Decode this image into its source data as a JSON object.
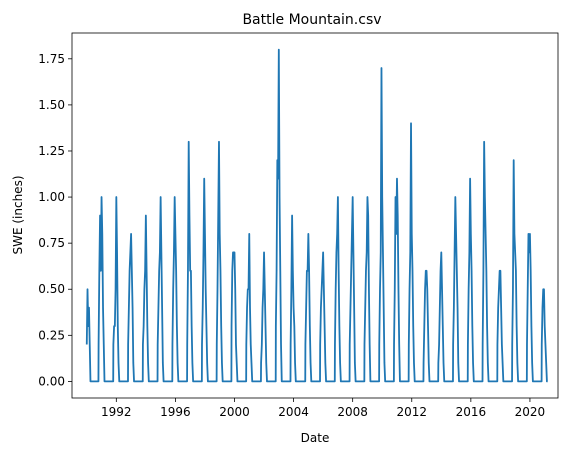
{
  "chart_data": {
    "type": "line",
    "title": "Battle Mountain.csv",
    "xlabel": "Date",
    "ylabel": "SWE (inches)",
    "xlim": [
      1989.0,
      2021.9
    ],
    "ylim": [
      -0.09,
      1.89
    ],
    "xticks": [
      1992,
      1996,
      2000,
      2004,
      2008,
      2012,
      2016,
      2020
    ],
    "yticks": [
      0.0,
      0.25,
      0.5,
      0.75,
      1.0,
      1.25,
      1.5,
      1.75
    ],
    "ytick_labels": [
      "0.00",
      "0.25",
      "0.50",
      "0.75",
      "1.00",
      "1.25",
      "1.50",
      "1.75"
    ],
    "grid": false,
    "series": [
      {
        "color": "#1f77b4",
        "x": [
          1990.0,
          1990.05,
          1990.1,
          1990.15,
          1990.2,
          1990.25,
          1990.3,
          1990.4,
          1990.8,
          1990.85,
          1990.9,
          1990.95,
          1991.0,
          1991.05,
          1991.1,
          1991.15,
          1991.2,
          1991.25,
          1991.3,
          1991.4,
          1991.8,
          1991.85,
          1991.9,
          1991.95,
          1992.0,
          1992.05,
          1992.1,
          1992.15,
          1992.2,
          1992.25,
          1992.3,
          1992.4,
          1992.8,
          1992.85,
          1992.9,
          1992.95,
          1993.0,
          1993.05,
          1993.1,
          1993.15,
          1993.2,
          1993.25,
          1993.3,
          1993.4,
          1993.8,
          1993.85,
          1993.9,
          1993.95,
          1994.0,
          1994.05,
          1994.1,
          1994.15,
          1994.2,
          1994.25,
          1994.3,
          1994.4,
          1994.8,
          1994.85,
          1994.9,
          1994.95,
          1995.0,
          1995.05,
          1995.1,
          1995.15,
          1995.2,
          1995.25,
          1995.3,
          1995.4,
          1995.8,
          1995.85,
          1995.9,
          1995.95,
          1996.0,
          1996.05,
          1996.1,
          1996.15,
          1996.2,
          1996.25,
          1996.3,
          1996.4,
          1996.8,
          1996.85,
          1996.9,
          1996.95,
          1997.0,
          1997.05,
          1997.1,
          1997.15,
          1997.2,
          1997.25,
          1997.3,
          1997.4,
          1997.8,
          1997.85,
          1997.9,
          1997.95,
          1998.0,
          1998.05,
          1998.1,
          1998.15,
          1998.2,
          1998.25,
          1998.3,
          1998.4,
          1998.8,
          1998.85,
          1998.9,
          1998.95,
          1999.0,
          1999.05,
          1999.1,
          1999.15,
          1999.2,
          1999.25,
          1999.3,
          1999.4,
          1999.8,
          1999.85,
          1999.9,
          1999.95,
          2000.0,
          2000.05,
          2000.1,
          2000.15,
          2000.2,
          2000.25,
          2000.3,
          2000.4,
          2000.8,
          2000.85,
          2000.9,
          2000.95,
          2001.0,
          2001.05,
          2001.1,
          2001.15,
          2001.2,
          2001.25,
          2001.3,
          2001.4,
          2001.8,
          2001.85,
          2001.9,
          2001.95,
          2002.0,
          2002.05,
          2002.1,
          2002.15,
          2002.2,
          2002.25,
          2002.3,
          2002.4,
          2002.8,
          2002.85,
          2002.9,
          2002.95,
          2003.0,
          2003.05,
          2003.1,
          2003.15,
          2003.2,
          2003.25,
          2003.3,
          2003.4,
          2003.8,
          2003.85,
          2003.9,
          2003.95,
          2004.0,
          2004.05,
          2004.1,
          2004.15,
          2004.2,
          2004.25,
          2004.3,
          2004.4,
          2004.8,
          2004.85,
          2004.9,
          2004.95,
          2005.0,
          2005.05,
          2005.1,
          2005.15,
          2005.2,
          2005.25,
          2005.3,
          2005.4,
          2005.8,
          2005.85,
          2005.9,
          2005.95,
          2006.0,
          2006.05,
          2006.1,
          2006.15,
          2006.2,
          2006.25,
          2006.3,
          2006.4,
          2006.8,
          2006.85,
          2006.9,
          2006.95,
          2007.0,
          2007.05,
          2007.1,
          2007.15,
          2007.2,
          2007.25,
          2007.3,
          2007.4,
          2007.8,
          2007.85,
          2007.9,
          2007.95,
          2008.0,
          2008.05,
          2008.1,
          2008.15,
          2008.2,
          2008.25,
          2008.3,
          2008.4,
          2008.8,
          2008.85,
          2008.9,
          2008.95,
          2009.0,
          2009.05,
          2009.1,
          2009.15,
          2009.2,
          2009.25,
          2009.3,
          2009.4,
          2009.8,
          2009.85,
          2009.9,
          2009.95,
          2010.0,
          2010.05,
          2010.1,
          2010.15,
          2010.2,
          2010.25,
          2010.3,
          2010.4,
          2010.8,
          2010.85,
          2010.9,
          2010.95,
          2011.0,
          2011.05,
          2011.1,
          2011.15,
          2011.2,
          2011.25,
          2011.3,
          2011.4,
          2011.8,
          2011.85,
          2011.9,
          2011.95,
          2012.0,
          2012.05,
          2012.1,
          2012.15,
          2012.2,
          2012.25,
          2012.3,
          2012.4,
          2012.8,
          2012.85,
          2012.9,
          2012.95,
          2013.0,
          2013.05,
          2013.1,
          2013.15,
          2013.2,
          2013.25,
          2013.3,
          2013.4,
          2013.8,
          2013.85,
          2013.9,
          2013.95,
          2014.0,
          2014.05,
          2014.1,
          2014.15,
          2014.2,
          2014.25,
          2014.3,
          2014.4,
          2014.8,
          2014.85,
          2014.9,
          2014.95,
          2015.0,
          2015.05,
          2015.1,
          2015.15,
          2015.2,
          2015.25,
          2015.3,
          2015.4,
          2015.8,
          2015.85,
          2015.9,
          2015.95,
          2016.0,
          2016.05,
          2016.1,
          2016.15,
          2016.2,
          2016.25,
          2016.3,
          2016.4,
          2016.8,
          2016.85,
          2016.9,
          2016.95,
          2017.0,
          2017.05,
          2017.1,
          2017.15,
          2017.2,
          2017.25,
          2017.3,
          2017.4,
          2017.8,
          2017.85,
          2017.9,
          2017.95,
          2018.0,
          2018.05,
          2018.1,
          2018.15,
          2018.2,
          2018.25,
          2018.3,
          2018.4,
          2018.8,
          2018.85,
          2018.9,
          2018.95,
          2019.0,
          2019.05,
          2019.1,
          2019.15,
          2019.2,
          2019.25,
          2019.3,
          2019.4,
          2019.8,
          2019.85,
          2019.9,
          2019.95,
          2020.0,
          2020.05,
          2020.1,
          2020.15,
          2020.2,
          2020.25,
          2020.3,
          2020.4,
          2020.8,
          2020.85,
          2020.9,
          2020.95,
          2021.0,
          2021.05,
          2021.1,
          2021.15,
          2021.2
        ],
        "y": [
          0.2,
          0.5,
          0.3,
          0.4,
          0.2,
          0.0,
          0.0,
          0.0,
          0.2,
          0.6,
          0.9,
          0.6,
          1.0,
          0.8,
          0.4,
          0.2,
          0.0,
          0.0,
          0.0,
          0.0,
          0.2,
          0.3,
          0.3,
          0.5,
          1.0,
          0.7,
          0.3,
          0.1,
          0.0,
          0.0,
          0.0,
          0.0,
          0.2,
          0.4,
          0.6,
          0.7,
          0.8,
          0.6,
          0.4,
          0.1,
          0.0,
          0.0,
          0.0,
          0.0,
          0.2,
          0.3,
          0.5,
          0.6,
          0.9,
          0.6,
          0.3,
          0.1,
          0.0,
          0.0,
          0.0,
          0.0,
          0.2,
          0.4,
          0.6,
          0.7,
          1.0,
          0.7,
          0.4,
          0.1,
          0.0,
          0.0,
          0.0,
          0.0,
          0.2,
          0.5,
          0.7,
          1.0,
          0.8,
          0.6,
          0.3,
          0.1,
          0.0,
          0.0,
          0.0,
          0.0,
          0.2,
          0.6,
          1.3,
          0.9,
          0.6,
          0.6,
          0.3,
          0.1,
          0.0,
          0.0,
          0.0,
          0.0,
          0.2,
          0.4,
          0.7,
          1.1,
          0.8,
          0.5,
          0.3,
          0.1,
          0.0,
          0.0,
          0.0,
          0.0,
          0.2,
          0.5,
          0.9,
          1.3,
          0.8,
          0.6,
          0.3,
          0.1,
          0.0,
          0.0,
          0.0,
          0.0,
          0.3,
          0.6,
          0.7,
          0.7,
          0.7,
          0.5,
          0.2,
          0.1,
          0.0,
          0.0,
          0.0,
          0.0,
          0.2,
          0.4,
          0.5,
          0.5,
          0.8,
          0.4,
          0.2,
          0.1,
          0.0,
          0.0,
          0.0,
          0.0,
          0.1,
          0.2,
          0.4,
          0.5,
          0.7,
          0.5,
          0.3,
          0.1,
          0.0,
          0.0,
          0.0,
          0.0,
          0.3,
          0.6,
          1.2,
          1.1,
          1.8,
          1.0,
          0.6,
          0.2,
          0.0,
          0.0,
          0.0,
          0.0,
          0.2,
          0.5,
          0.9,
          0.6,
          0.4,
          0.3,
          0.1,
          0.0,
          0.0,
          0.0,
          0.0,
          0.0,
          0.2,
          0.4,
          0.6,
          0.6,
          0.8,
          0.6,
          0.3,
          0.1,
          0.0,
          0.0,
          0.0,
          0.0,
          0.2,
          0.4,
          0.5,
          0.6,
          0.7,
          0.5,
          0.3,
          0.1,
          0.0,
          0.0,
          0.0,
          0.0,
          0.2,
          0.5,
          0.7,
          0.8,
          1.0,
          0.6,
          0.3,
          0.1,
          0.0,
          0.0,
          0.0,
          0.0,
          0.2,
          0.4,
          0.6,
          0.8,
          1.0,
          0.7,
          0.4,
          0.1,
          0.0,
          0.0,
          0.0,
          0.0,
          0.2,
          0.4,
          0.6,
          0.7,
          1.0,
          0.9,
          0.5,
          0.2,
          0.0,
          0.0,
          0.0,
          0.0,
          0.2,
          0.5,
          0.7,
          1.7,
          1.0,
          0.7,
          0.4,
          0.1,
          0.0,
          0.0,
          0.0,
          0.0,
          0.2,
          0.5,
          1.0,
          0.8,
          1.1,
          0.9,
          0.5,
          0.2,
          0.0,
          0.0,
          0.0,
          0.0,
          0.2,
          0.5,
          0.7,
          1.4,
          0.8,
          0.6,
          0.3,
          0.1,
          0.0,
          0.0,
          0.0,
          0.0,
          0.1,
          0.3,
          0.5,
          0.6,
          0.6,
          0.5,
          0.3,
          0.1,
          0.0,
          0.0,
          0.0,
          0.0,
          0.1,
          0.2,
          0.4,
          0.6,
          0.7,
          0.5,
          0.3,
          0.1,
          0.0,
          0.0,
          0.0,
          0.0,
          0.2,
          0.4,
          0.7,
          1.0,
          0.8,
          0.6,
          0.4,
          0.1,
          0.0,
          0.0,
          0.0,
          0.0,
          0.2,
          0.5,
          0.7,
          1.1,
          0.8,
          0.6,
          0.3,
          0.1,
          0.0,
          0.0,
          0.0,
          0.0,
          0.2,
          0.6,
          1.3,
          1.0,
          0.8,
          0.6,
          0.3,
          0.1,
          0.0,
          0.0,
          0.0,
          0.0,
          0.2,
          0.4,
          0.5,
          0.6,
          0.6,
          0.4,
          0.2,
          0.1,
          0.0,
          0.0,
          0.0,
          0.0,
          0.2,
          0.5,
          1.2,
          0.8,
          0.7,
          0.6,
          0.3,
          0.1,
          0.0,
          0.0,
          0.0,
          0.0,
          0.2,
          0.5,
          0.8,
          0.7,
          0.8,
          0.6,
          0.3,
          0.1,
          0.0,
          0.0,
          0.0,
          0.0,
          0.2,
          0.4,
          0.5,
          0.5,
          0.3,
          0.2,
          0.1,
          0.0,
          0.0
        ]
      }
    ]
  }
}
